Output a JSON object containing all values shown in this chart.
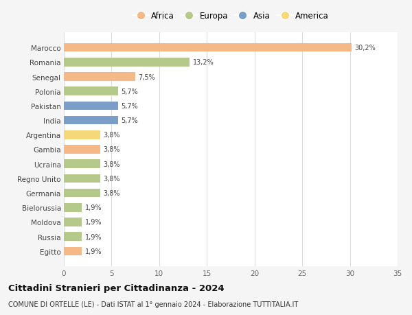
{
  "countries": [
    "Marocco",
    "Romania",
    "Senegal",
    "Polonia",
    "Pakistan",
    "India",
    "Argentina",
    "Gambia",
    "Ucraina",
    "Regno Unito",
    "Germania",
    "Bielorussia",
    "Moldova",
    "Russia",
    "Egitto"
  ],
  "values": [
    30.2,
    13.2,
    7.5,
    5.7,
    5.7,
    5.7,
    3.8,
    3.8,
    3.8,
    3.8,
    3.8,
    1.9,
    1.9,
    1.9,
    1.9
  ],
  "labels": [
    "30,2%",
    "13,2%",
    "7,5%",
    "5,7%",
    "5,7%",
    "5,7%",
    "3,8%",
    "3,8%",
    "3,8%",
    "3,8%",
    "3,8%",
    "1,9%",
    "1,9%",
    "1,9%",
    "1,9%"
  ],
  "colors": [
    "#f5b887",
    "#b5c98a",
    "#f5b887",
    "#b5c98a",
    "#7b9ec9",
    "#7b9ec9",
    "#f5d87a",
    "#f5b887",
    "#b5c98a",
    "#b5c98a",
    "#b5c98a",
    "#b5c98a",
    "#b5c98a",
    "#b5c98a",
    "#f5b887"
  ],
  "legend": [
    {
      "label": "Africa",
      "color": "#f5b887"
    },
    {
      "label": "Europa",
      "color": "#b5c98a"
    },
    {
      "label": "Asia",
      "color": "#7b9ec9"
    },
    {
      "label": "America",
      "color": "#f5d87a"
    }
  ],
  "xlim": [
    0,
    35
  ],
  "xticks": [
    0,
    5,
    10,
    15,
    20,
    25,
    30,
    35
  ],
  "title": "Cittadini Stranieri per Cittadinanza - 2024",
  "subtitle": "COMUNE DI ORTELLE (LE) - Dati ISTAT al 1° gennaio 2024 - Elaborazione TUTTITALIA.IT",
  "bg_color": "#f5f5f5",
  "plot_bg_color": "#ffffff",
  "grid_color": "#dddddd",
  "bar_height": 0.6,
  "label_fontsize": 7,
  "ytick_fontsize": 7.5,
  "xtick_fontsize": 7.5,
  "legend_fontsize": 8.5,
  "title_fontsize": 9.5,
  "subtitle_fontsize": 7
}
